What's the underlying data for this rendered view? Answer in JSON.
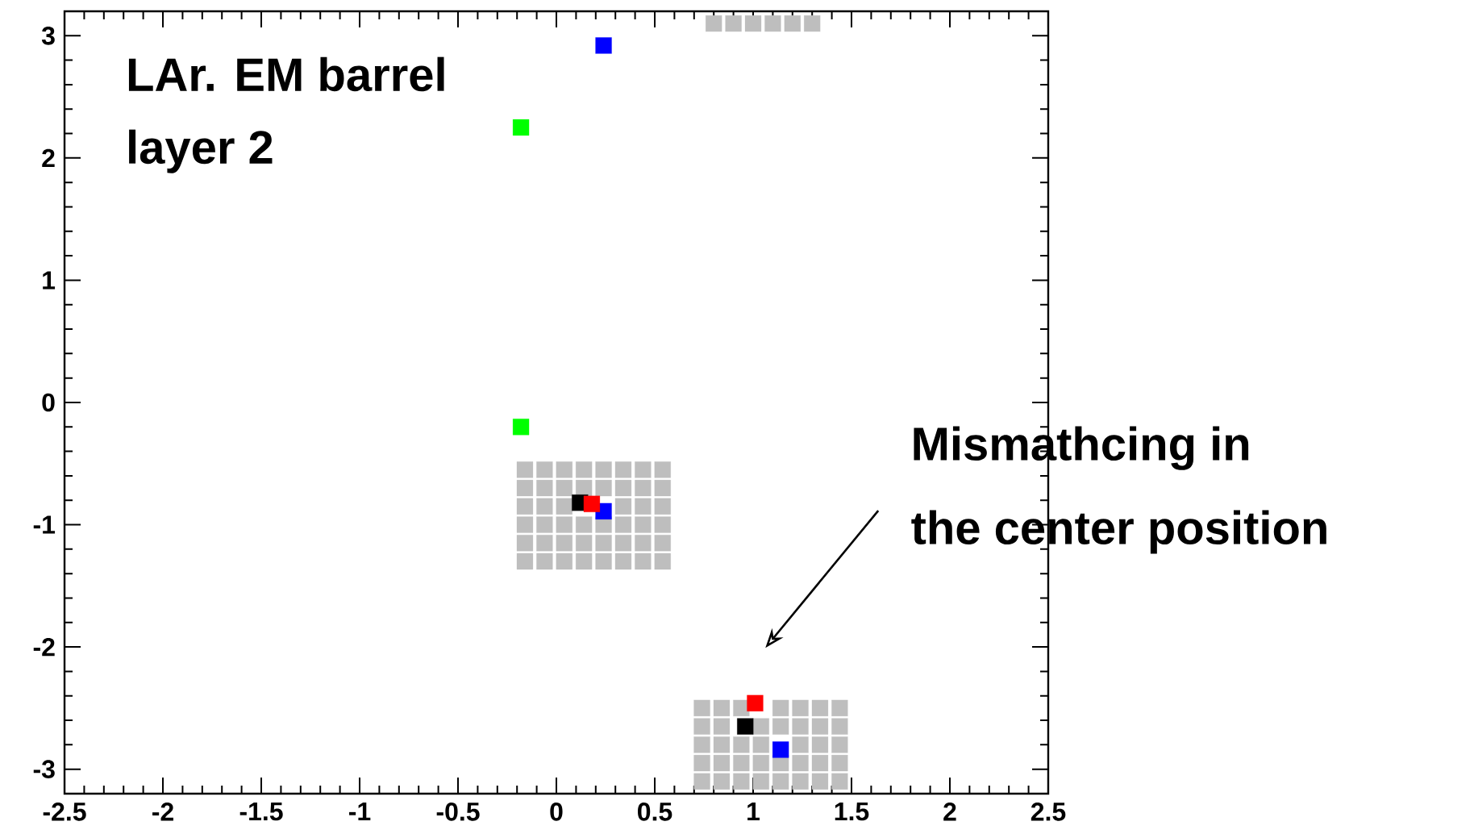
{
  "chart_data": {
    "type": "scatter",
    "marker": "square",
    "xlim": [
      -2.5,
      2.5
    ],
    "ylim": [
      -3.2,
      3.2
    ],
    "xticks": [
      -2.5,
      -2,
      -1.5,
      -1,
      -0.5,
      0,
      0.5,
      1,
      1.5,
      2,
      2.5
    ],
    "yticks": [
      -3,
      -2,
      -1,
      0,
      1,
      2,
      3
    ],
    "annotations": [
      "LAr. EM barrel",
      "layer 2",
      "Mismathcing in",
      "the center position"
    ],
    "series": [
      {
        "color": "#bebebe",
        "x": [
          -0.16,
          -0.06,
          0.04,
          0.14,
          0.24,
          0.34,
          0.44,
          0.54,
          -0.16,
          -0.06,
          0.04,
          0.14,
          0.24,
          0.34,
          0.44,
          0.54,
          -0.16,
          -0.06,
          0.04,
          0.34,
          0.44,
          0.54,
          -0.16,
          -0.06,
          0.04,
          0.14,
          0.24,
          0.34,
          0.44,
          0.54,
          -0.16,
          -0.06,
          0.04,
          0.14,
          0.24,
          0.34,
          0.44,
          0.54,
          -0.16,
          -0.06,
          0.04,
          0.14,
          0.24,
          0.34,
          0.44,
          0.54,
          0.74,
          0.84,
          0.94,
          1.14,
          1.24,
          1.34,
          1.44,
          0.74,
          0.84,
          1.04,
          1.14,
          1.24,
          1.34,
          1.44,
          0.74,
          0.84,
          0.94,
          1.04,
          1.24,
          1.34,
          1.44,
          0.74,
          0.84,
          0.94,
          1.04,
          1.14,
          1.24,
          1.34,
          1.44,
          0.74,
          0.84,
          0.94,
          1.04,
          1.14,
          1.24,
          1.34,
          1.44,
          0.8,
          0.9,
          1.0,
          1.1,
          1.2,
          1.3
        ],
        "values": [
          -0.55,
          -0.55,
          -0.55,
          -0.55,
          -0.55,
          -0.55,
          -0.55,
          -0.55,
          -0.7,
          -0.7,
          -0.7,
          -0.7,
          -0.7,
          -0.7,
          -0.7,
          -0.7,
          -0.85,
          -0.85,
          -0.85,
          -0.85,
          -0.85,
          -0.85,
          -1,
          -1,
          -1,
          -1,
          -1,
          -1,
          -1,
          -1,
          -1.15,
          -1.15,
          -1.15,
          -1.15,
          -1.15,
          -1.15,
          -1.15,
          -1.15,
          -1.3,
          -1.3,
          -1.3,
          -1.3,
          -1.3,
          -1.3,
          -1.3,
          -1.3,
          -2.5,
          -2.5,
          -2.5,
          -2.5,
          -2.5,
          -2.5,
          -2.5,
          -2.65,
          -2.65,
          -2.65,
          -2.65,
          -2.65,
          -2.65,
          -2.65,
          -2.8,
          -2.8,
          -2.8,
          -2.8,
          -2.8,
          -2.8,
          -2.8,
          -2.95,
          -2.95,
          -2.95,
          -2.95,
          -2.95,
          -2.95,
          -2.95,
          -2.95,
          -3.1,
          -3.1,
          -3.1,
          -3.1,
          -3.1,
          -3.1,
          -3.1,
          -3.1,
          3.1,
          3.1,
          3.1,
          3.1,
          3.1,
          3.1
        ]
      },
      {
        "color": "#00ff00",
        "x": [
          -0.18,
          -0.18
        ],
        "values": [
          2.25,
          -0.2
        ]
      },
      {
        "color": "#0000ff",
        "x": [
          0.24,
          0.24,
          1.14
        ],
        "values": [
          2.92,
          -0.89,
          -2.84
        ]
      },
      {
        "color": "#000000",
        "x": [
          0.12,
          0.96
        ],
        "values": [
          -0.82,
          -2.65
        ]
      },
      {
        "color": "#ff0000",
        "x": [
          0.18,
          1.01
        ],
        "values": [
          -0.83,
          -2.46
        ]
      }
    ]
  }
}
